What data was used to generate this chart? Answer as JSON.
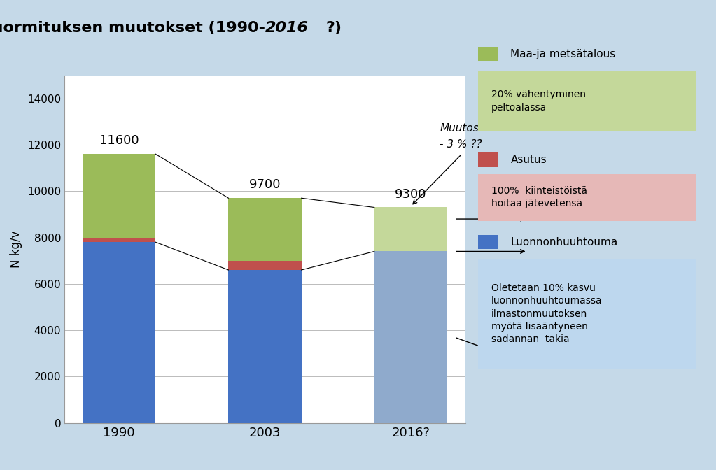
{
  "ylabel": "N kg/v",
  "categories": [
    "1990",
    "2003",
    "2016?"
  ],
  "luonnon_values": [
    7800,
    6600,
    7400
  ],
  "asutus_values": [
    200,
    400,
    0
  ],
  "maatalous_values": [
    3600,
    2700,
    1900
  ],
  "luonnon_color_12": "#4472C4",
  "luonnon_color_3": "#8FAACC",
  "asutus_color": "#C0504D",
  "maatalous_color_12": "#9BBB59",
  "maatalous_color_3": "#C4D89A",
  "totals": [
    11600,
    9700,
    9300
  ],
  "ylim": [
    0,
    15000
  ],
  "yticks": [
    0,
    2000,
    4000,
    6000,
    8000,
    10000,
    12000,
    14000
  ],
  "bg_color": "#C5D9E8",
  "plot_bg": "#FFFFFF",
  "legend_maa_label": "Maa-ja metsätalous",
  "legend_asutus_label": "Asutus",
  "legend_luonnon_label": "Luonnonhuuhtouma",
  "ann_maa": "20% vähentyminen\npeltoalassa",
  "ann_asutus": "100%  kiinteistöistä\nhoitaa jätevetensä",
  "ann_luonnon": "Oletetaan 10% kasvu\nluonnonhuuhtoumassa\nilmastonmuutoksen\nmyötä lisääntyneen\nsadannan  takia",
  "ann_muutos": "Muutos\n- 3 % ??",
  "ann_maa_bg": "#C4D89A",
  "ann_asutus_bg": "#E6B8B7",
  "ann_luonnon_bg": "#BDD7EE"
}
